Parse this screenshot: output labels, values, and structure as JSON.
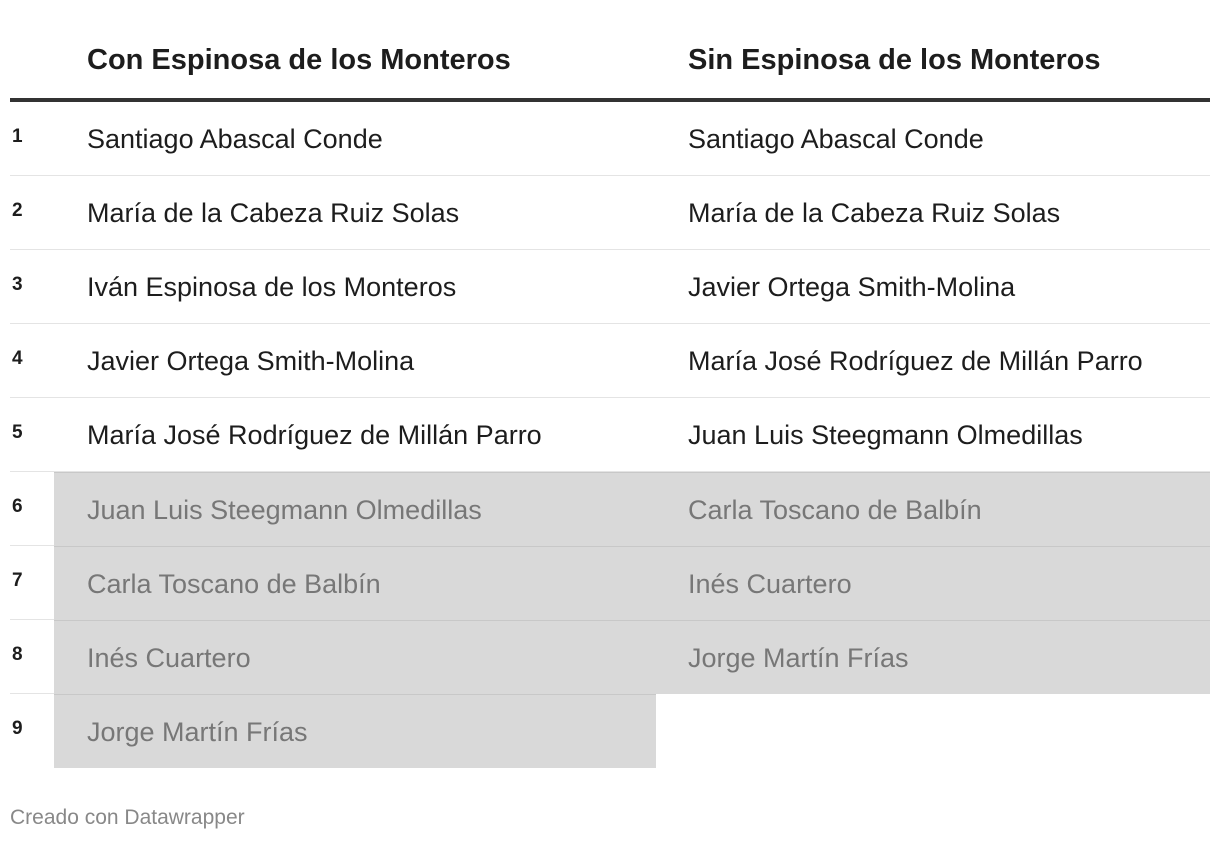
{
  "table": {
    "headers": [
      "Con Espinosa de los Monteros",
      "Sin Espinosa de los Monteros"
    ],
    "rows": [
      {
        "num": "1",
        "con": "Santiago Abascal Conde",
        "sin": "Santiago Abascal Conde",
        "con_highlight": false,
        "sin_highlight": false
      },
      {
        "num": "2",
        "con": "María de la Cabeza Ruiz Solas",
        "sin": "María de la Cabeza Ruiz Solas",
        "con_highlight": false,
        "sin_highlight": false
      },
      {
        "num": "3",
        "con": "Iván Espinosa de los Monteros",
        "sin": "Javier Ortega Smith-Molina",
        "con_highlight": false,
        "sin_highlight": false
      },
      {
        "num": "4",
        "con": "Javier Ortega Smith-Molina",
        "sin": "María José Rodríguez de Millán Parro",
        "con_highlight": false,
        "sin_highlight": false
      },
      {
        "num": "5",
        "con": "María José Rodríguez de Millán Parro",
        "sin": "Juan Luis Steegmann Olmedillas",
        "con_highlight": false,
        "sin_highlight": false
      },
      {
        "num": "6",
        "con": "Juan Luis Steegmann Olmedillas",
        "sin": "Carla Toscano de Balbín",
        "con_highlight": true,
        "sin_highlight": true
      },
      {
        "num": "7",
        "con": "Carla Toscano de Balbín",
        "sin": "Inés Cuartero",
        "con_highlight": true,
        "sin_highlight": true
      },
      {
        "num": "8",
        "con": "Inés Cuartero",
        "sin": "Jorge Martín Frías",
        "con_highlight": true,
        "sin_highlight": true
      },
      {
        "num": "9",
        "con": "Jorge Martín Frías",
        "sin": "",
        "con_highlight": true,
        "sin_highlight": false
      }
    ]
  },
  "colors": {
    "highlight_bg": "#d9d9d9",
    "highlight_text": "#777777",
    "header_rule": "#333333"
  },
  "footer": {
    "credit": "Creado con Datawrapper"
  }
}
